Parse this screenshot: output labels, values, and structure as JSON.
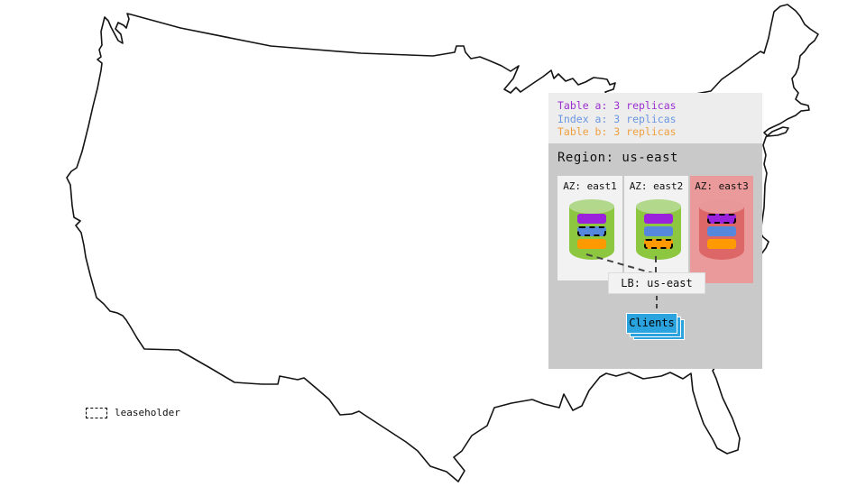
{
  "legend": {
    "items": [
      {
        "label": "Table a: 3 replicas",
        "color": "table_a_text"
      },
      {
        "label": "Index a: 3 replicas",
        "color": "index_a_text"
      },
      {
        "label": "Table b: 3 replicas",
        "color": "table_b_text"
      }
    ]
  },
  "region": {
    "title": "Region: us-east",
    "azs": [
      {
        "label": "AZ: east1",
        "highlighted": false,
        "replicas": [
          {
            "name": "table-a",
            "color": "table_a_bar",
            "leaseholder": false
          },
          {
            "name": "index-a",
            "color": "index_a_bar",
            "leaseholder": true
          },
          {
            "name": "table-b",
            "color": "table_b_bar",
            "leaseholder": false
          }
        ]
      },
      {
        "label": "AZ: east2",
        "highlighted": false,
        "replicas": [
          {
            "name": "table-a",
            "color": "table_a_bar",
            "leaseholder": false
          },
          {
            "name": "index-a",
            "color": "index_a_bar",
            "leaseholder": false
          },
          {
            "name": "table-b",
            "color": "table_b_bar",
            "leaseholder": true
          }
        ]
      },
      {
        "label": "AZ: east3",
        "highlighted": true,
        "replicas": [
          {
            "name": "table-a",
            "color": "table_a_bar",
            "leaseholder": true
          },
          {
            "name": "index-a",
            "color": "index_a_bar",
            "leaseholder": false
          },
          {
            "name": "table-b",
            "color": "table_b_bar",
            "leaseholder": false
          }
        ]
      }
    ],
    "lb_label": "LB: us-east",
    "clients_label": "Clients"
  },
  "key": {
    "leaseholder_label": "leaseholder"
  },
  "colors": {
    "table_a_text": "#9b30d0",
    "index_a_text": "#6b96e0",
    "table_b_text": "#f0a040",
    "table_a_bar": "#9a22dd",
    "index_a_bar": "#5588dd",
    "table_b_bar": "#ff9900",
    "panel_legend_bg": "#ededed",
    "panel_region_bg": "#c9c9c9",
    "az_bg": "#f2f2f2",
    "az_highlight_bg": "#ea9a9a",
    "cyl_green_body": "#8dc63f",
    "cyl_green_top": "#b2d98b",
    "cyl_red_body": "#dd6666",
    "cyl_red_top": "#e89898",
    "lb_bg": "#f2f2f2",
    "clients_bg": "#2aa3de",
    "connector": "#444444",
    "map_outline": "#141414"
  }
}
